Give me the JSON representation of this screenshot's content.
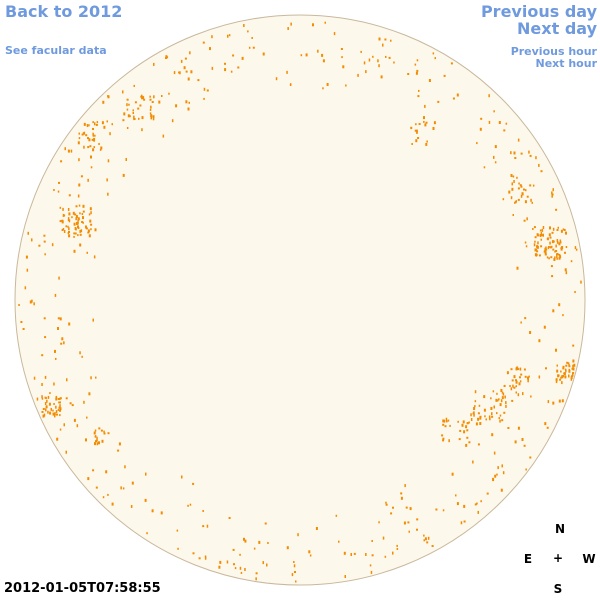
{
  "links": {
    "back": "Back to 2012",
    "facular": "See facular data",
    "previous_day": "Previous day",
    "next_day": "Next day",
    "previous_hour": "Previous hour",
    "next_hour": "Next hour"
  },
  "timestamp": "2012-01-05T07:58:55",
  "compass": {
    "north": "N",
    "east": "E",
    "center": "+",
    "west": "W",
    "south": "S"
  }
}
